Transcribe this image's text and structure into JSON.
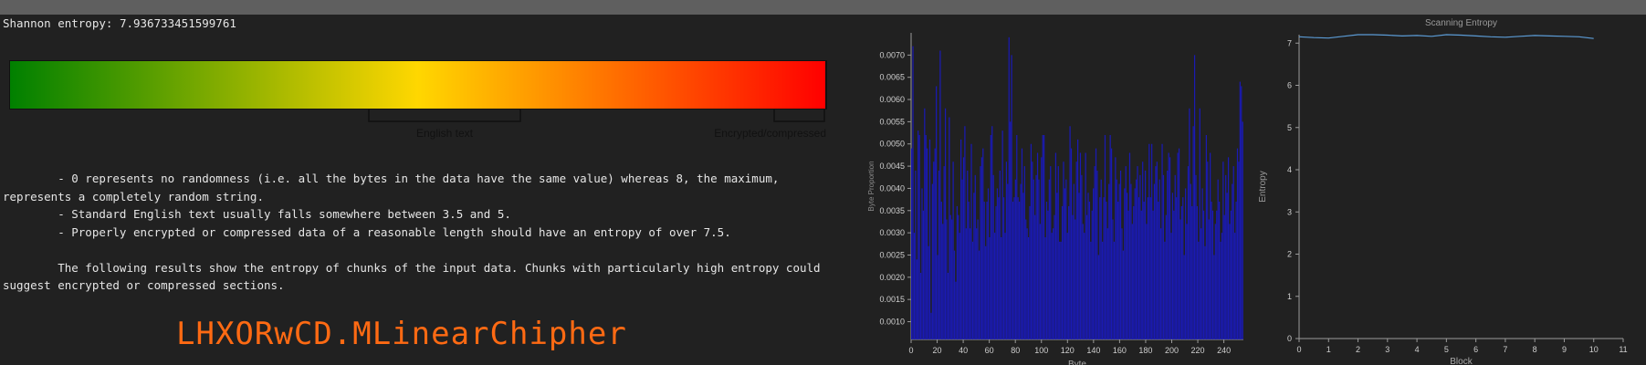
{
  "entropy": {
    "label": "Shannon entropy:",
    "value": "7.936733451599761"
  },
  "gauge": {
    "scale_labels": [
      "English text",
      "Encrypted/compressed"
    ],
    "colors": {
      "low": "#008000",
      "mid": "#ffd700",
      "high": "#ff0000"
    }
  },
  "description": {
    "line1": "        - 0 represents no randomness (i.e. all the bytes in the data have the same value) whereas 8, the maximum,",
    "line2": "represents a completely random string.",
    "line3": "        - Standard English text usually falls somewhere between 3.5 and 5.",
    "line4": "        - Properly encrypted or compressed data of a reasonable length should have an entropy of over 7.5.",
    "line5": "        The following results show the entropy of chunks of the input data. Chunks with particularly high entropy could",
    "line6": "suggest encrypted or compressed sections."
  },
  "watermark": "LHXORwCD.MLinearChipher",
  "chart_data": [
    {
      "type": "bar",
      "title": "",
      "xlabel": "Byte",
      "ylabel": "Byte Proportion",
      "xlim": [
        0,
        255
      ],
      "ylim": [
        0.0006,
        0.0075
      ],
      "xticks": [
        0,
        20,
        40,
        60,
        80,
        100,
        120,
        140,
        160,
        180,
        200,
        220,
        240
      ],
      "yticks": [
        0.001,
        0.0015,
        0.002,
        0.0025,
        0.003,
        0.0035,
        0.004,
        0.0045,
        0.005,
        0.0055,
        0.006,
        0.0065,
        0.007
      ],
      "bar_color": "#1a1ab4",
      "x": "0..255",
      "values": [
        0.0049,
        0.0072,
        0.003,
        0.0044,
        0.0024,
        0.0053,
        0.0052,
        0.0021,
        0.004,
        0.0035,
        0.0058,
        0.0052,
        0.0049,
        0.0027,
        0.0051,
        0.0012,
        0.0041,
        0.0046,
        0.0049,
        0.0063,
        0.0025,
        0.0044,
        0.0071,
        0.0037,
        0.0032,
        0.0045,
        0.0058,
        0.0033,
        0.0021,
        0.0056,
        0.0034,
        0.0033,
        0.0046,
        0.0026,
        0.0019,
        0.0036,
        0.0034,
        0.003,
        0.0051,
        0.0042,
        0.0047,
        0.0054,
        0.0031,
        0.0044,
        0.0037,
        0.0031,
        0.005,
        0.0028,
        0.0039,
        0.0043,
        0.0031,
        0.0033,
        0.0026,
        0.0045,
        0.0047,
        0.0049,
        0.0037,
        0.0027,
        0.0037,
        0.004,
        0.0029,
        0.0052,
        0.0054,
        0.0043,
        0.003,
        0.0036,
        0.004,
        0.0038,
        0.0044,
        0.0029,
        0.0053,
        0.0038,
        0.003,
        0.0046,
        0.0041,
        0.0074,
        0.0055,
        0.007,
        0.0037,
        0.0038,
        0.0042,
        0.0052,
        0.0038,
        0.0037,
        0.0041,
        0.0049,
        0.0039,
        0.0045,
        0.0033,
        0.0031,
        0.0029,
        0.0036,
        0.005,
        0.0046,
        0.0042,
        0.0034,
        0.0043,
        0.0048,
        0.0042,
        0.0032,
        0.0047,
        0.0052,
        0.0052,
        0.0029,
        0.0037,
        0.0035,
        0.0042,
        0.0045,
        0.003,
        0.0031,
        0.0034,
        0.0048,
        0.0039,
        0.0045,
        0.0028,
        0.0028,
        0.0036,
        0.0046,
        0.004,
        0.0042,
        0.003,
        0.0036,
        0.0054,
        0.0049,
        0.0034,
        0.0041,
        0.0033,
        0.0046,
        0.0051,
        0.0039,
        0.0048,
        0.0043,
        0.0032,
        0.003,
        0.0048,
        0.0034,
        0.0039,
        0.0037,
        0.0028,
        0.0035,
        0.004,
        0.0045,
        0.0049,
        0.0044,
        0.0025,
        0.0038,
        0.0042,
        0.0028,
        0.0038,
        0.0052,
        0.0037,
        0.0031,
        0.0041,
        0.0052,
        0.0049,
        0.0033,
        0.0028,
        0.0047,
        0.0042,
        0.0037,
        0.0041,
        0.0044,
        0.0031,
        0.0026,
        0.004,
        0.0045,
        0.0039,
        0.0035,
        0.0048,
        0.0041,
        0.0032,
        0.0036,
        0.004,
        0.0042,
        0.0045,
        0.0038,
        0.0043,
        0.0035,
        0.0046,
        0.0037,
        0.0044,
        0.0032,
        0.0038,
        0.005,
        0.0038,
        0.005,
        0.0035,
        0.0041,
        0.0045,
        0.0046,
        0.0037,
        0.0042,
        0.0031,
        0.005,
        0.0043,
        0.0028,
        0.0034,
        0.0044,
        0.0048,
        0.0047,
        0.003,
        0.0039,
        0.0035,
        0.0043,
        0.0038,
        0.0048,
        0.0049,
        0.0033,
        0.0036,
        0.0038,
        0.0025,
        0.004,
        0.0032,
        0.0045,
        0.0058,
        0.0041,
        0.0036,
        0.0054,
        0.007,
        0.0043,
        0.0036,
        0.0028,
        0.0058,
        0.0031,
        0.004,
        0.0035,
        0.0027,
        0.0052,
        0.0046,
        0.0033,
        0.0048,
        0.0037,
        0.0035,
        0.0025,
        0.0032,
        0.0035,
        0.0042,
        0.0037,
        0.0028,
        0.003,
        0.0046,
        0.0034,
        0.0043,
        0.0039,
        0.0047,
        0.0032,
        0.0035,
        0.0041,
        0.0045,
        0.003,
        0.0037,
        0.0049,
        0.0046,
        0.0064,
        0.0063,
        0.0055
      ]
    },
    {
      "type": "line",
      "title": "Scanning Entropy",
      "xlabel": "Block",
      "ylabel": "Entropy",
      "xlim": [
        0,
        11
      ],
      "ylim": [
        0,
        7.2
      ],
      "xticks": [
        0,
        1,
        2,
        3,
        4,
        5,
        6,
        7,
        8,
        9,
        10,
        11
      ],
      "yticks": [
        0,
        1,
        2,
        3,
        4,
        5,
        6,
        7
      ],
      "line_color": "#5b9bd5",
      "x": [
        0,
        0.5,
        1,
        1.5,
        2,
        2.5,
        3,
        3.5,
        4,
        4.5,
        5,
        5.5,
        6,
        6.5,
        7,
        7.5,
        8,
        8.5,
        9,
        9.5,
        10
      ],
      "y": [
        7.15,
        7.13,
        7.12,
        7.16,
        7.2,
        7.2,
        7.19,
        7.17,
        7.18,
        7.16,
        7.2,
        7.19,
        7.17,
        7.15,
        7.14,
        7.16,
        7.18,
        7.17,
        7.16,
        7.15,
        7.11
      ]
    }
  ]
}
